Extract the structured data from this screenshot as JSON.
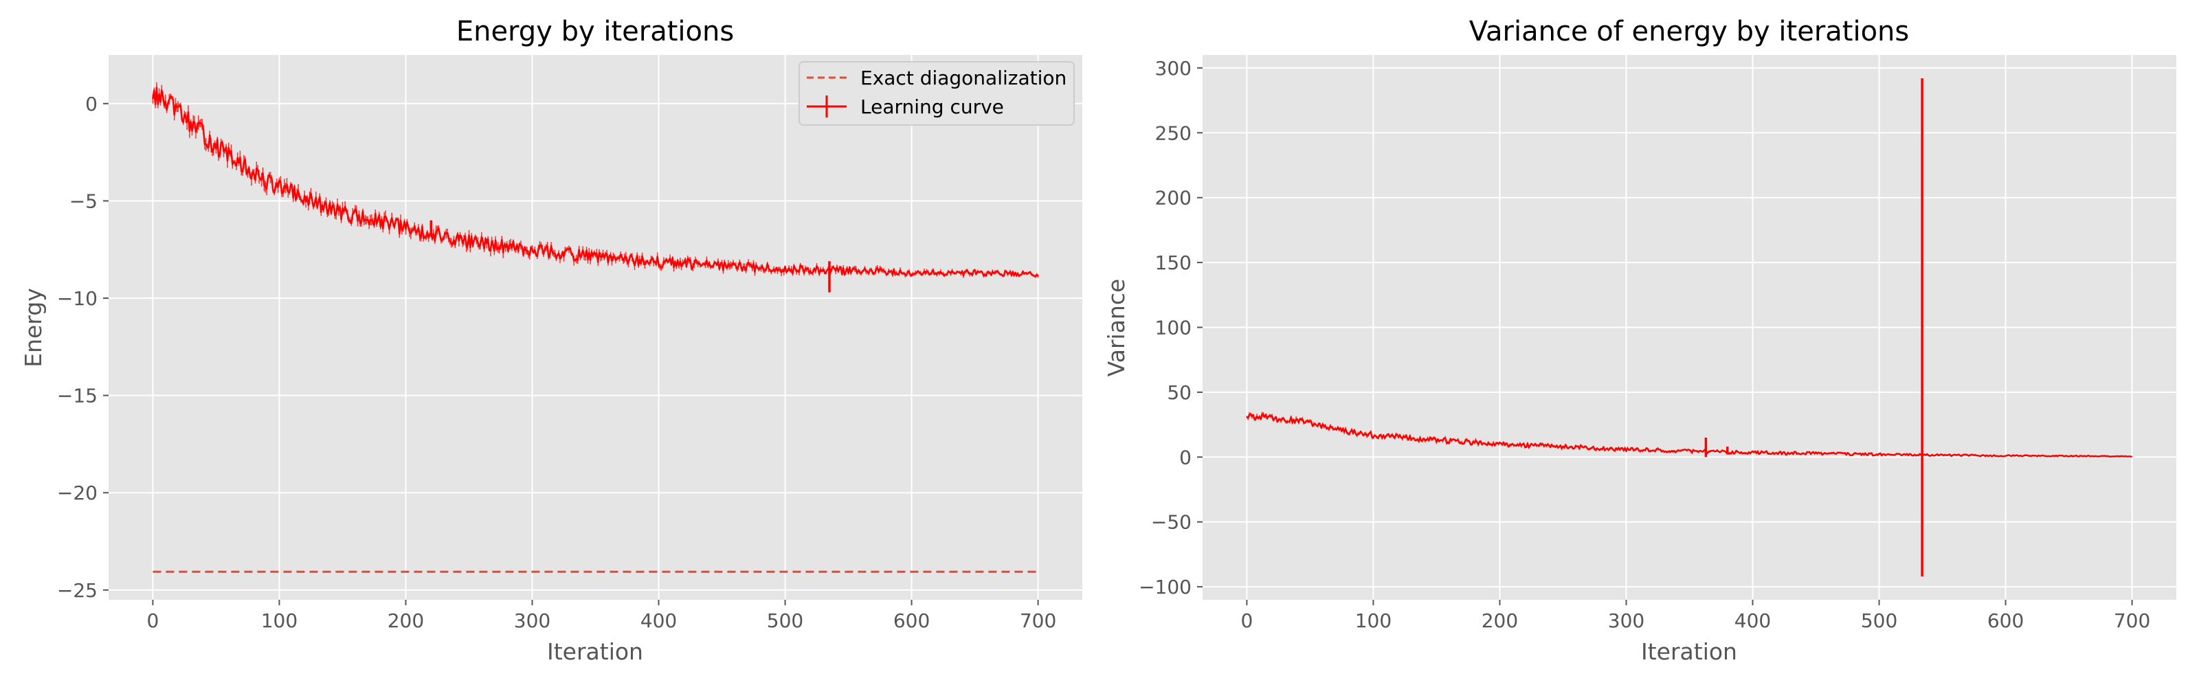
{
  "chart_data": [
    {
      "type": "line",
      "title": "Energy by iterations",
      "xlabel": "Iteration",
      "ylabel": "Energy",
      "xlim": [
        -35,
        735
      ],
      "ylim": [
        -25.5,
        2.5
      ],
      "xticks": [
        0,
        100,
        200,
        300,
        400,
        500,
        600,
        700
      ],
      "yticks": [
        0,
        -5,
        -10,
        -15,
        -20,
        -25
      ],
      "xtick_labels": [
        "0",
        "100",
        "200",
        "300",
        "400",
        "500",
        "600",
        "700"
      ],
      "ytick_labels": [
        "0",
        "−5",
        "−10",
        "−15",
        "−20",
        "−25"
      ],
      "grid": true,
      "legend_position": "top-right",
      "legend": [
        "Exact diagonalization",
        "Learning curve"
      ],
      "colors": {
        "learning": "#ff0000",
        "exact": "#e24a33",
        "background": "#e5e5e5",
        "grid": "#ffffff"
      },
      "series": [
        {
          "name": "Exact diagonalization",
          "style": "dashed",
          "x": [
            0,
            700
          ],
          "y": [
            -24.06,
            -24.06
          ]
        },
        {
          "name": "Learning curve",
          "style": "solid-with-errorbars",
          "noise_amplitude": 0.5,
          "x": [
            0,
            10,
            20,
            30,
            40,
            50,
            60,
            70,
            80,
            90,
            100,
            120,
            140,
            160,
            180,
            200,
            220,
            250,
            300,
            350,
            400,
            450,
            500,
            550,
            600,
            650,
            700
          ],
          "y": [
            0.5,
            0.1,
            -0.4,
            -1.0,
            -1.6,
            -2.2,
            -2.7,
            -3.2,
            -3.6,
            -4.0,
            -4.3,
            -4.9,
            -5.4,
            -5.8,
            -6.1,
            -6.4,
            -6.7,
            -7.1,
            -7.5,
            -7.9,
            -8.15,
            -8.35,
            -8.5,
            -8.6,
            -8.65,
            -8.7,
            -8.75
          ],
          "spikes": [
            {
              "x": 535,
              "y_min": -9.7,
              "y_max": -8.1
            },
            {
              "x": 220,
              "y_min": -6.8,
              "y_max": -6.0
            }
          ]
        }
      ]
    },
    {
      "type": "line",
      "title": "Variance of energy by iterations",
      "xlabel": "Iteration",
      "ylabel": "Variance",
      "xlim": [
        -35,
        735
      ],
      "ylim": [
        -110,
        310
      ],
      "xticks": [
        0,
        100,
        200,
        300,
        400,
        500,
        600,
        700
      ],
      "yticks": [
        300,
        250,
        200,
        150,
        100,
        50,
        0,
        -50,
        -100
      ],
      "xtick_labels": [
        "0",
        "100",
        "200",
        "300",
        "400",
        "500",
        "600",
        "700"
      ],
      "ytick_labels": [
        "300",
        "250",
        "200",
        "150",
        "100",
        "50",
        "0",
        "−50",
        "−100"
      ],
      "grid": true,
      "colors": {
        "line": "#ff0000",
        "background": "#e5e5e5",
        "grid": "#ffffff"
      },
      "series": [
        {
          "style": "solid-with-errorbars",
          "noise_amplitude": 2.5,
          "x": [
            0,
            20,
            40,
            60,
            80,
            100,
            150,
            200,
            250,
            300,
            350,
            400,
            450,
            500,
            550,
            600,
            650,
            700
          ],
          "y": [
            32,
            30,
            28,
            24,
            20,
            17,
            13,
            10,
            8,
            6,
            4.5,
            3.5,
            2.8,
            2.0,
            1.5,
            1.0,
            0.8,
            0.5
          ],
          "spikes": [
            {
              "x": 534,
              "y_min": -92,
              "y_max": 292
            },
            {
              "x": 363,
              "y_min": 0,
              "y_max": 15
            },
            {
              "x": 380,
              "y_min": 2,
              "y_max": 8
            }
          ]
        }
      ]
    }
  ]
}
